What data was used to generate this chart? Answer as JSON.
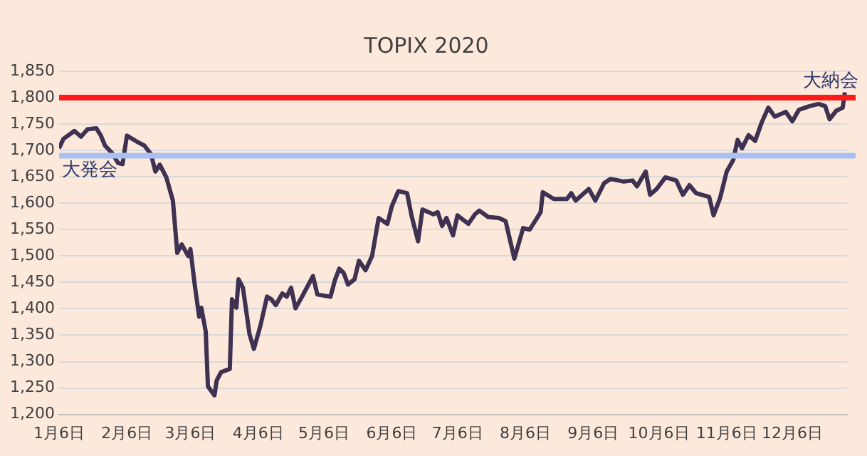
{
  "chart_data": {
    "type": "line",
    "title": "TOPIX 2020",
    "series": [
      {
        "color": "#3f3151",
        "x": [
          "2020-01-06",
          "2020-01-08",
          "2020-01-13",
          "2020-01-16",
          "2020-01-19",
          "2020-01-23",
          "2020-01-25",
          "2020-01-27",
          "2020-01-30",
          "2020-02-02",
          "2020-02-04",
          "2020-02-06",
          "2020-02-10",
          "2020-02-14",
          "2020-02-17",
          "2020-02-19",
          "2020-02-21",
          "2020-02-24",
          "2020-02-27",
          "2020-02-29",
          "2020-03-02",
          "2020-03-05",
          "2020-03-06",
          "2020-03-08",
          "2020-03-10",
          "2020-03-11",
          "2020-03-13",
          "2020-03-14",
          "2020-03-17",
          "2020-03-18",
          "2020-03-20",
          "2020-03-24",
          "2020-03-25",
          "2020-03-27",
          "2020-03-28",
          "2020-03-30",
          "2020-04-02",
          "2020-04-04",
          "2020-04-07",
          "2020-04-10",
          "2020-04-12",
          "2020-04-14",
          "2020-04-17",
          "2020-04-19",
          "2020-04-21",
          "2020-04-23",
          "2020-04-26",
          "2020-05-01",
          "2020-05-03",
          "2020-05-09",
          "2020-05-11",
          "2020-05-13",
          "2020-05-15",
          "2020-05-17",
          "2020-05-20",
          "2020-05-22",
          "2020-05-25",
          "2020-05-28",
          "2020-05-31",
          "2020-06-04",
          "2020-06-06",
          "2020-06-09",
          "2020-06-13",
          "2020-06-15",
          "2020-06-18",
          "2020-06-20",
          "2020-06-25",
          "2020-06-27",
          "2020-06-29",
          "2020-07-01",
          "2020-07-04",
          "2020-07-06",
          "2020-07-11",
          "2020-07-14",
          "2020-07-16",
          "2020-07-20",
          "2020-07-25",
          "2020-07-28",
          "2020-08-01",
          "2020-08-05",
          "2020-08-08",
          "2020-08-13",
          "2020-08-14",
          "2020-08-19",
          "2020-08-25",
          "2020-08-27",
          "2020-08-29",
          "2020-09-04",
          "2020-09-07",
          "2020-09-11",
          "2020-09-14",
          "2020-09-20",
          "2020-09-24",
          "2020-09-26",
          "2020-09-30",
          "2020-10-02",
          "2020-10-05",
          "2020-10-09",
          "2020-10-14",
          "2020-10-17",
          "2020-10-20",
          "2020-10-23",
          "2020-10-29",
          "2020-10-31",
          "2020-11-03",
          "2020-11-06",
          "2020-11-09",
          "2020-11-11",
          "2020-11-13",
          "2020-11-16",
          "2020-11-19",
          "2020-11-22",
          "2020-11-25",
          "2020-11-28",
          "2020-12-03",
          "2020-12-06",
          "2020-12-09",
          "2020-12-14",
          "2020-12-18",
          "2020-12-21",
          "2020-12-23",
          "2020-12-26",
          "2020-12-29",
          "2020-12-30"
        ],
        "values": [
          1704,
          1722,
          1737,
          1726,
          1740,
          1742,
          1729,
          1709,
          1696,
          1676,
          1674,
          1728,
          1718,
          1709,
          1693,
          1660,
          1673,
          1649,
          1605,
          1506,
          1522,
          1500,
          1513,
          1445,
          1385,
          1402,
          1357,
          1253,
          1236,
          1264,
          1280,
          1286,
          1418,
          1402,
          1456,
          1440,
          1352,
          1324,
          1368,
          1423,
          1418,
          1407,
          1429,
          1423,
          1440,
          1401,
          1423,
          1462,
          1427,
          1423,
          1454,
          1476,
          1468,
          1446,
          1456,
          1491,
          1473,
          1500,
          1572,
          1561,
          1594,
          1623,
          1619,
          1577,
          1528,
          1588,
          1579,
          1583,
          1557,
          1572,
          1539,
          1577,
          1561,
          1579,
          1586,
          1574,
          1572,
          1566,
          1495,
          1553,
          1550,
          1583,
          1621,
          1608,
          1608,
          1619,
          1605,
          1627,
          1605,
          1638,
          1646,
          1641,
          1643,
          1632,
          1660,
          1616,
          1627,
          1649,
          1643,
          1616,
          1634,
          1619,
          1612,
          1577,
          1610,
          1660,
          1682,
          1720,
          1704,
          1729,
          1718,
          1753,
          1781,
          1764,
          1773,
          1755,
          1777,
          1784,
          1788,
          1784,
          1759,
          1775,
          1781,
          1810
        ]
      }
    ],
    "xlim": [
      "2020-01-06",
      "2020-12-31"
    ],
    "xticks": [
      {
        "value": "2020-01-06",
        "label": "1月6日"
      },
      {
        "value": "2020-02-06",
        "label": "2月6日"
      },
      {
        "value": "2020-03-06",
        "label": "3月6日"
      },
      {
        "value": "2020-04-06",
        "label": "4月6日"
      },
      {
        "value": "2020-05-06",
        "label": "5月6日"
      },
      {
        "value": "2020-06-06",
        "label": "6月6日"
      },
      {
        "value": "2020-07-06",
        "label": "7月6日"
      },
      {
        "value": "2020-08-06",
        "label": "8月6日"
      },
      {
        "value": "2020-09-06",
        "label": "9月6日"
      },
      {
        "value": "2020-10-06",
        "label": "10月6日"
      },
      {
        "value": "2020-11-06",
        "label": "11月6日"
      },
      {
        "value": "2020-12-06",
        "label": "12月6日"
      }
    ],
    "ylim": [
      1200,
      1850
    ],
    "yticks": [
      {
        "value": 1200,
        "label": "1,200"
      },
      {
        "value": 1250,
        "label": "1,250"
      },
      {
        "value": 1300,
        "label": "1,300"
      },
      {
        "value": 1350,
        "label": "1,350"
      },
      {
        "value": 1400,
        "label": "1,400"
      },
      {
        "value": 1450,
        "label": "1,450"
      },
      {
        "value": 1500,
        "label": "1,500"
      },
      {
        "value": 1550,
        "label": "1,550"
      },
      {
        "value": 1600,
        "label": "1,600"
      },
      {
        "value": 1650,
        "label": "1,650"
      },
      {
        "value": 1700,
        "label": "1,700"
      },
      {
        "value": 1750,
        "label": "1,750"
      },
      {
        "value": 1800,
        "label": "1,800"
      },
      {
        "value": 1850,
        "label": "1,850"
      }
    ],
    "ref_lines": [
      {
        "axis": "y",
        "value": 1800,
        "label": "大納会",
        "color": "#ff1a1a"
      },
      {
        "axis": "y",
        "value": 1690,
        "label": "大発会",
        "color": "#a9c0f0"
      }
    ],
    "grid": "y",
    "legend": false,
    "marker": "none",
    "line_style": "solid"
  }
}
